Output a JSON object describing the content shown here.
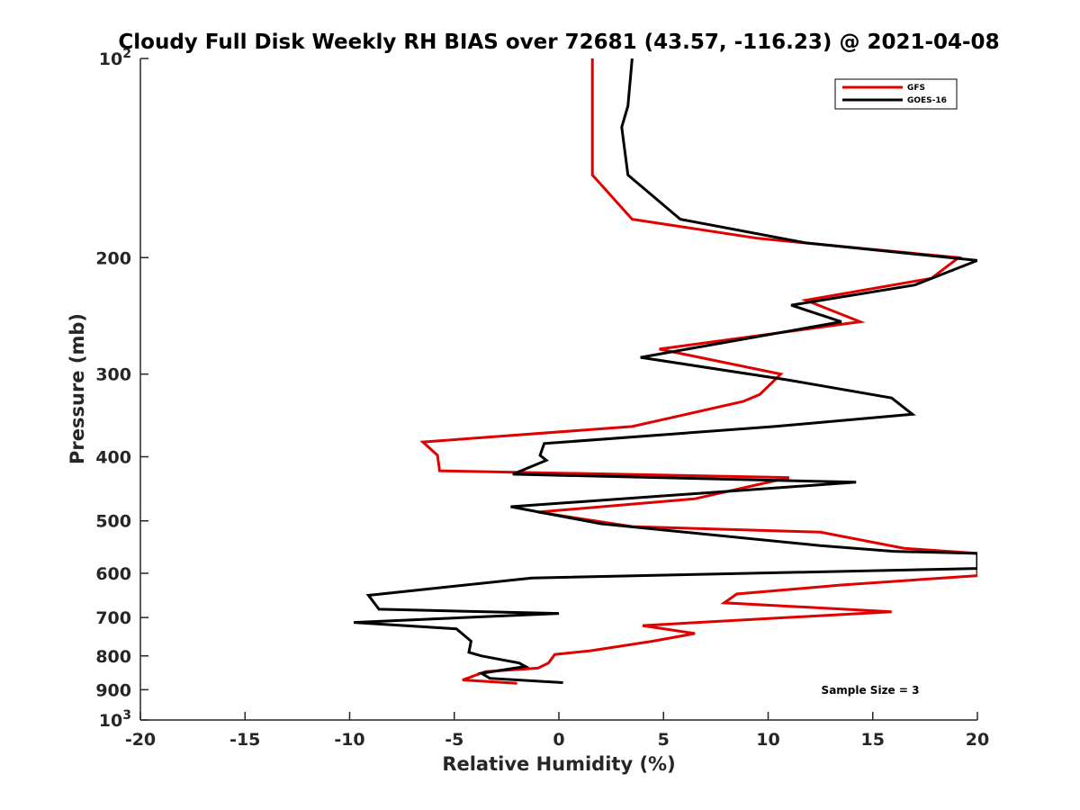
{
  "chart_data": {
    "type": "line",
    "title": "Cloudy Full Disk Weekly RH BIAS over 72681 (43.57, -116.23) @ 2021-04-08",
    "xlabel": "Relative Humidity (%)",
    "ylabel": "Pressure (mb)",
    "xlim": [
      -20,
      20
    ],
    "ylim": [
      100,
      1000
    ],
    "y_scale": "log",
    "y_reversed": true,
    "x_ticks": [
      "-20",
      "-15",
      "-10",
      "-5",
      "0",
      "5",
      "10",
      "15",
      "20"
    ],
    "y_ticks": [
      {
        "value": 100,
        "label": "10",
        "sup": "2"
      },
      {
        "value": 200,
        "label": "200",
        "sup": ""
      },
      {
        "value": 300,
        "label": "300",
        "sup": ""
      },
      {
        "value": 400,
        "label": "400",
        "sup": ""
      },
      {
        "value": 500,
        "label": "500",
        "sup": ""
      },
      {
        "value": 600,
        "label": "600",
        "sup": ""
      },
      {
        "value": 700,
        "label": "700",
        "sup": ""
      },
      {
        "value": 800,
        "label": "800",
        "sup": ""
      },
      {
        "value": 900,
        "label": "900",
        "sup": ""
      },
      {
        "value": 1000,
        "label": "10",
        "sup": "3"
      }
    ],
    "legend_position": "top-right",
    "annotation": "Sample Size = 3",
    "series": [
      {
        "name": "GFS",
        "color": "#e00000",
        "points": [
          [
            1.6,
            100
          ],
          [
            1.6,
            150
          ],
          [
            3.5,
            175
          ],
          [
            9.5,
            187
          ],
          [
            19.1,
            200
          ],
          [
            17.8,
            215
          ],
          [
            11.8,
            232
          ],
          [
            14.4,
            250
          ],
          [
            4.8,
            275
          ],
          [
            10.6,
            300
          ],
          [
            9.6,
            322
          ],
          [
            8.8,
            330
          ],
          [
            3.5,
            360
          ],
          [
            -6.5,
            380
          ],
          [
            -5.8,
            398
          ],
          [
            -5.7,
            420
          ],
          [
            11.0,
            430
          ],
          [
            6.5,
            463
          ],
          [
            -1.0,
            485
          ],
          [
            3.5,
            510
          ],
          [
            12.5,
            520
          ],
          [
            16.5,
            550
          ],
          [
            20.0,
            560
          ],
          [
            20.0,
            605
          ],
          [
            13.5,
            625
          ],
          [
            8.5,
            645
          ],
          [
            7.9,
            665
          ],
          [
            15.9,
            686
          ],
          [
            4.0,
            720
          ],
          [
            6.5,
            740
          ],
          [
            4.5,
            760
          ],
          [
            1.5,
            786
          ],
          [
            -0.2,
            796
          ],
          [
            -0.5,
            820
          ],
          [
            -1.0,
            835
          ],
          [
            -3.5,
            845
          ],
          [
            -4.6,
            870
          ],
          [
            -2.0,
            880
          ]
        ]
      },
      {
        "name": "GOES-16",
        "color": "#000000",
        "points": [
          [
            3.5,
            100
          ],
          [
            3.3,
            118
          ],
          [
            3.0,
            127
          ],
          [
            3.3,
            150
          ],
          [
            5.8,
            175
          ],
          [
            11.8,
            190
          ],
          [
            20.0,
            202
          ],
          [
            17.0,
            220
          ],
          [
            11.1,
            236
          ],
          [
            13.5,
            250
          ],
          [
            3.9,
            283
          ],
          [
            10.9,
            306
          ],
          [
            15.9,
            326
          ],
          [
            16.9,
            345
          ],
          [
            10.3,
            360
          ],
          [
            -0.7,
            382
          ],
          [
            -0.9,
            398
          ],
          [
            -0.6,
            405
          ],
          [
            -2.2,
            425
          ],
          [
            14.2,
            437
          ],
          [
            -2.3,
            476
          ],
          [
            2.0,
            505
          ],
          [
            12.5,
            545
          ],
          [
            16.0,
            556
          ],
          [
            20.0,
            560
          ],
          [
            20.0,
            590
          ],
          [
            -1.3,
            610
          ],
          [
            -9.1,
            648
          ],
          [
            -8.6,
            680
          ],
          [
            0.0,
            690
          ],
          [
            -9.8,
            712
          ],
          [
            -4.9,
            728
          ],
          [
            -4.2,
            760
          ],
          [
            -4.3,
            790
          ],
          [
            -3.7,
            800
          ],
          [
            -1.9,
            820
          ],
          [
            -1.6,
            830
          ],
          [
            -3.7,
            850
          ],
          [
            -3.3,
            865
          ],
          [
            0.2,
            878
          ]
        ]
      }
    ]
  }
}
